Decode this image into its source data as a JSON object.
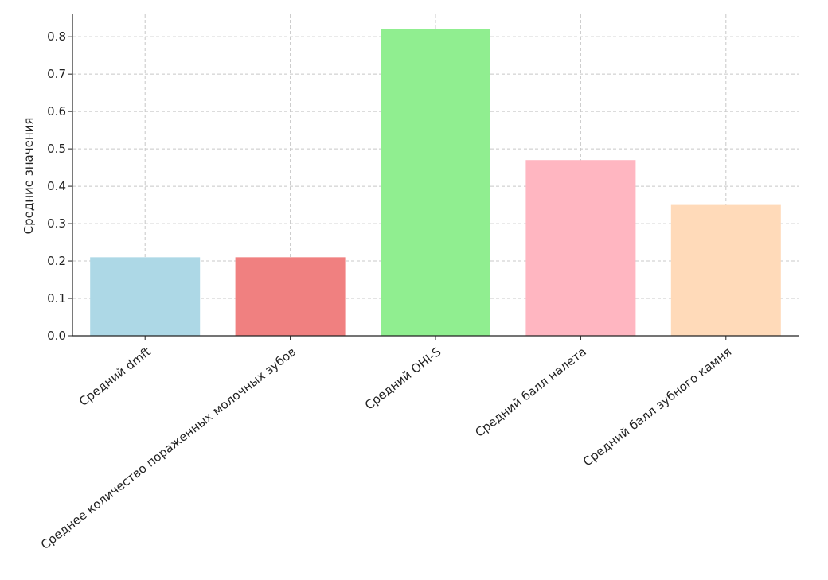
{
  "chart_data": {
    "type": "bar",
    "title": "",
    "xlabel": "",
    "ylabel": "Средние значения",
    "ylim": [
      0,
      0.86
    ],
    "yticks": [
      "0.0",
      "0.1",
      "0.2",
      "0.3",
      "0.4",
      "0.5",
      "0.6",
      "0.7",
      "0.8"
    ],
    "grid": true,
    "legend": "none",
    "categories": [
      "Средний dmft",
      "Среднее количество пораженных молочных зубов",
      "Средний OHI-S",
      "Средний балл налета",
      "Средний балл зубного камня"
    ],
    "values": [
      0.21,
      0.21,
      0.82,
      0.47,
      0.35
    ],
    "colors": [
      "#add8e6",
      "#f08080",
      "#90ee90",
      "#ffb6c1",
      "#ffdab9"
    ]
  }
}
